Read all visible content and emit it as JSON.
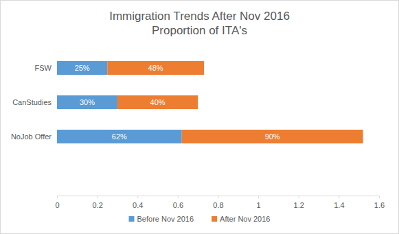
{
  "chart_data": {
    "type": "bar",
    "orientation": "horizontal",
    "stacked": true,
    "data_labels": true,
    "title": "Immigration Trends After Nov 2016",
    "subtitle": "Proportion of ITA's",
    "categories": [
      "FSW",
      "CanStudies",
      "NoJob Offer"
    ],
    "series": [
      {
        "name": "Before Nov 2016",
        "color": "#5b9bd5",
        "values": [
          0.25,
          0.3,
          0.62
        ],
        "value_labels": [
          "25%",
          "30%",
          "62%"
        ]
      },
      {
        "name": "After Nov 2016",
        "color": "#ed7d31",
        "values": [
          0.48,
          0.4,
          0.9
        ],
        "value_labels": [
          "48%",
          "40%",
          "90%"
        ]
      }
    ],
    "xlim": [
      0,
      1.6
    ],
    "xticks": [
      0,
      0.2,
      0.4,
      0.6,
      0.8,
      1,
      1.2,
      1.4,
      1.6
    ],
    "grid": false,
    "legend": "bottom"
  }
}
